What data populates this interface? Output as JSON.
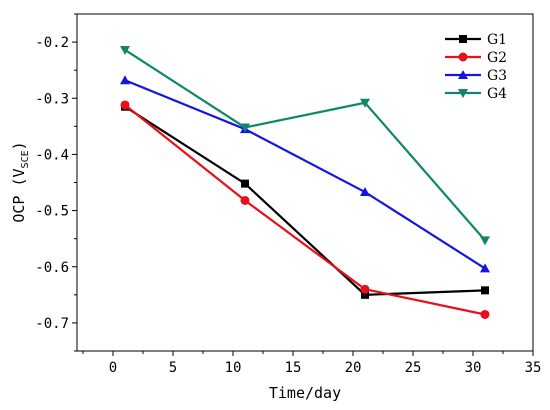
{
  "chart_data": {
    "type": "line",
    "xlabel": "Time/day",
    "ylabel": "OCP (V",
    "ylabel_sub": "SCE",
    "ylabel_close": ")",
    "xlim": [
      -3,
      35
    ],
    "ylim": [
      -0.75,
      -0.15
    ],
    "xticks": [
      0,
      5,
      10,
      15,
      20,
      25,
      30,
      35
    ],
    "xtick_labels": [
      "0",
      "5",
      "10",
      "15",
      "20",
      "25",
      "30",
      "35"
    ],
    "yticks": [
      -0.2,
      -0.3,
      -0.4,
      -0.5,
      -0.6,
      -0.7
    ],
    "ytick_labels": [
      "-0.2",
      "-0.3",
      "-0.4",
      "-0.5",
      "-0.6",
      "-0.7"
    ],
    "legend_position": "top-right",
    "series": [
      {
        "name": "G1",
        "color": "#000000",
        "marker": "square",
        "x": [
          1,
          11,
          21,
          31
        ],
        "y": [
          -0.315,
          -0.452,
          -0.65,
          -0.642
        ]
      },
      {
        "name": "G2",
        "color": "#e8101a",
        "marker": "circle",
        "x": [
          1,
          11,
          21,
          31
        ],
        "y": [
          -0.312,
          -0.482,
          -0.64,
          -0.685
        ]
      },
      {
        "name": "G3",
        "color": "#1515e0",
        "marker": "triangle-up",
        "x": [
          1,
          11,
          21,
          31
        ],
        "y": [
          -0.268,
          -0.355,
          -0.467,
          -0.603
        ]
      },
      {
        "name": "G4",
        "color": "#10876a",
        "marker": "triangle-down",
        "x": [
          1,
          11,
          21,
          31
        ],
        "y": [
          -0.214,
          -0.352,
          -0.308,
          -0.553
        ]
      }
    ]
  }
}
